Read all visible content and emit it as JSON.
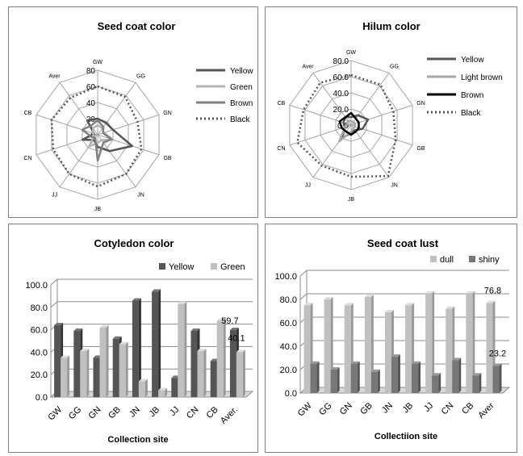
{
  "colors": {
    "dark": "#555555",
    "light": "#b3b3b3",
    "mid": "#808080",
    "black": "#000000",
    "grid": "#a6a6a6"
  },
  "chart_data": [
    {
      "type": "radar",
      "title": "Seed coat color",
      "axes": [
        "GW",
        "GG",
        "GN",
        "GB",
        "JN",
        "JB",
        "JJ",
        "CN",
        "CB",
        "Aver."
      ],
      "axis_labels_display": [
        "GW",
        "GG",
        "GN",
        "GB",
        "JN",
        "JB",
        "JJ",
        "CN",
        "CB",
        "Aver"
      ],
      "ticks": [
        "0",
        "20",
        "40",
        "60",
        "80"
      ],
      "rmax": 80,
      "series": [
        {
          "name": "Yellow",
          "color": "#555555",
          "width": 2.5,
          "dash": "",
          "values": [
            20,
            18,
            20,
            45,
            25,
            15,
            8,
            20,
            5,
            22
          ]
        },
        {
          "name": "Green",
          "color": "#b3b3b3",
          "width": 2.5,
          "dash": "",
          "values": [
            12,
            10,
            8,
            20,
            8,
            10,
            18,
            5,
            6,
            10
          ]
        },
        {
          "name": "Brown",
          "color": "#808080",
          "width": 2.5,
          "dash": "",
          "values": [
            18,
            12,
            7,
            18,
            12,
            32,
            5,
            8,
            20,
            14
          ]
        },
        {
          "name": "Black",
          "color": "#555555",
          "width": 2.5,
          "dash": "2,3",
          "values": [
            60,
            58,
            52,
            57,
            60,
            64,
            60,
            58,
            60,
            57
          ]
        }
      ]
    },
    {
      "type": "radar",
      "title": "Hilum color",
      "axes": [
        "GW",
        "GG",
        "GN",
        "GB",
        "JN",
        "JB",
        "JJ",
        "CN",
        "CB",
        "Aver."
      ],
      "axis_labels_display": [
        "GW",
        "GG",
        "GN",
        "GB",
        "JN",
        "JB",
        "JJ",
        "CN",
        "CB",
        "Aver"
      ],
      "ticks": [
        "0.0",
        "20.0",
        "40.0",
        "60.0",
        "80.0"
      ],
      "rmax": 80,
      "series": [
        {
          "name": "Yellow",
          "color": "#555555",
          "width": 2.5,
          "dash": "",
          "values": [
            10,
            15,
            22,
            15,
            8,
            10,
            20,
            8,
            10,
            12
          ]
        },
        {
          "name": "Light brown",
          "color": "#a6a6a6",
          "width": 2.5,
          "dash": "",
          "values": [
            5,
            5,
            5,
            5,
            5,
            8,
            25,
            8,
            5,
            7
          ]
        },
        {
          "name": "Brown",
          "color": "#000000",
          "width": 2.5,
          "dash": "",
          "values": [
            15,
            10,
            10,
            10,
            10,
            12,
            10,
            12,
            15,
            12
          ]
        },
        {
          "name": "Black",
          "color": "#555555",
          "width": 2.5,
          "dash": "2,3",
          "values": [
            62,
            62,
            55,
            58,
            78,
            64,
            62,
            70,
            62,
            65
          ]
        }
      ]
    },
    {
      "type": "bar",
      "title": "Cotyledon color",
      "xlabel": "Collection site",
      "categories": [
        "GW",
        "GG",
        "GN",
        "GB",
        "JN",
        "JB",
        "JJ",
        "CN",
        "CB",
        "Aver."
      ],
      "yticks": [
        "0.0",
        "20.0",
        "40.0",
        "60.0",
        "80.0",
        "100.0"
      ],
      "ylim": [
        0,
        100
      ],
      "series": [
        {
          "name": "Yellow",
          "color": "#555555",
          "values": [
            64,
            59,
            35,
            52,
            86,
            94,
            17,
            59,
            32,
            59.7
          ]
        },
        {
          "name": "Green",
          "color": "#c0c0c0",
          "values": [
            35,
            41,
            62,
            47,
            14,
            6,
            83,
            41,
            68,
            40.1
          ]
        }
      ],
      "data_labels": [
        {
          "category": "Aver.",
          "text": "59.7",
          "series": 0
        },
        {
          "category": "Aver.",
          "text": "40.1",
          "series": 1
        }
      ]
    },
    {
      "type": "bar",
      "title": "Seed coat lust",
      "xlabel": "Colleсtiion site",
      "categories": [
        "GW",
        "GG",
        "GN",
        "GB",
        "JN",
        "JB",
        "JJ",
        "CN",
        "CB",
        "Aver"
      ],
      "yticks": [
        "0.0",
        "20.0",
        "40.0",
        "60.0",
        "80.0",
        "100.0"
      ],
      "ylim": [
        0,
        100
      ],
      "series": [
        {
          "name": "dull",
          "color": "#c0c0c0",
          "values": [
            75,
            80,
            75,
            82,
            69,
            75,
            85,
            72,
            85,
            76.8
          ]
        },
        {
          "name": "shiny",
          "color": "#777777",
          "values": [
            25,
            20,
            25,
            18,
            31,
            25,
            15,
            28,
            15,
            23.2
          ]
        }
      ],
      "data_labels": [
        {
          "category": "Aver",
          "text": "76.8",
          "series": 0
        },
        {
          "category": "Aver",
          "text": "23.2",
          "series": 1
        }
      ]
    }
  ]
}
